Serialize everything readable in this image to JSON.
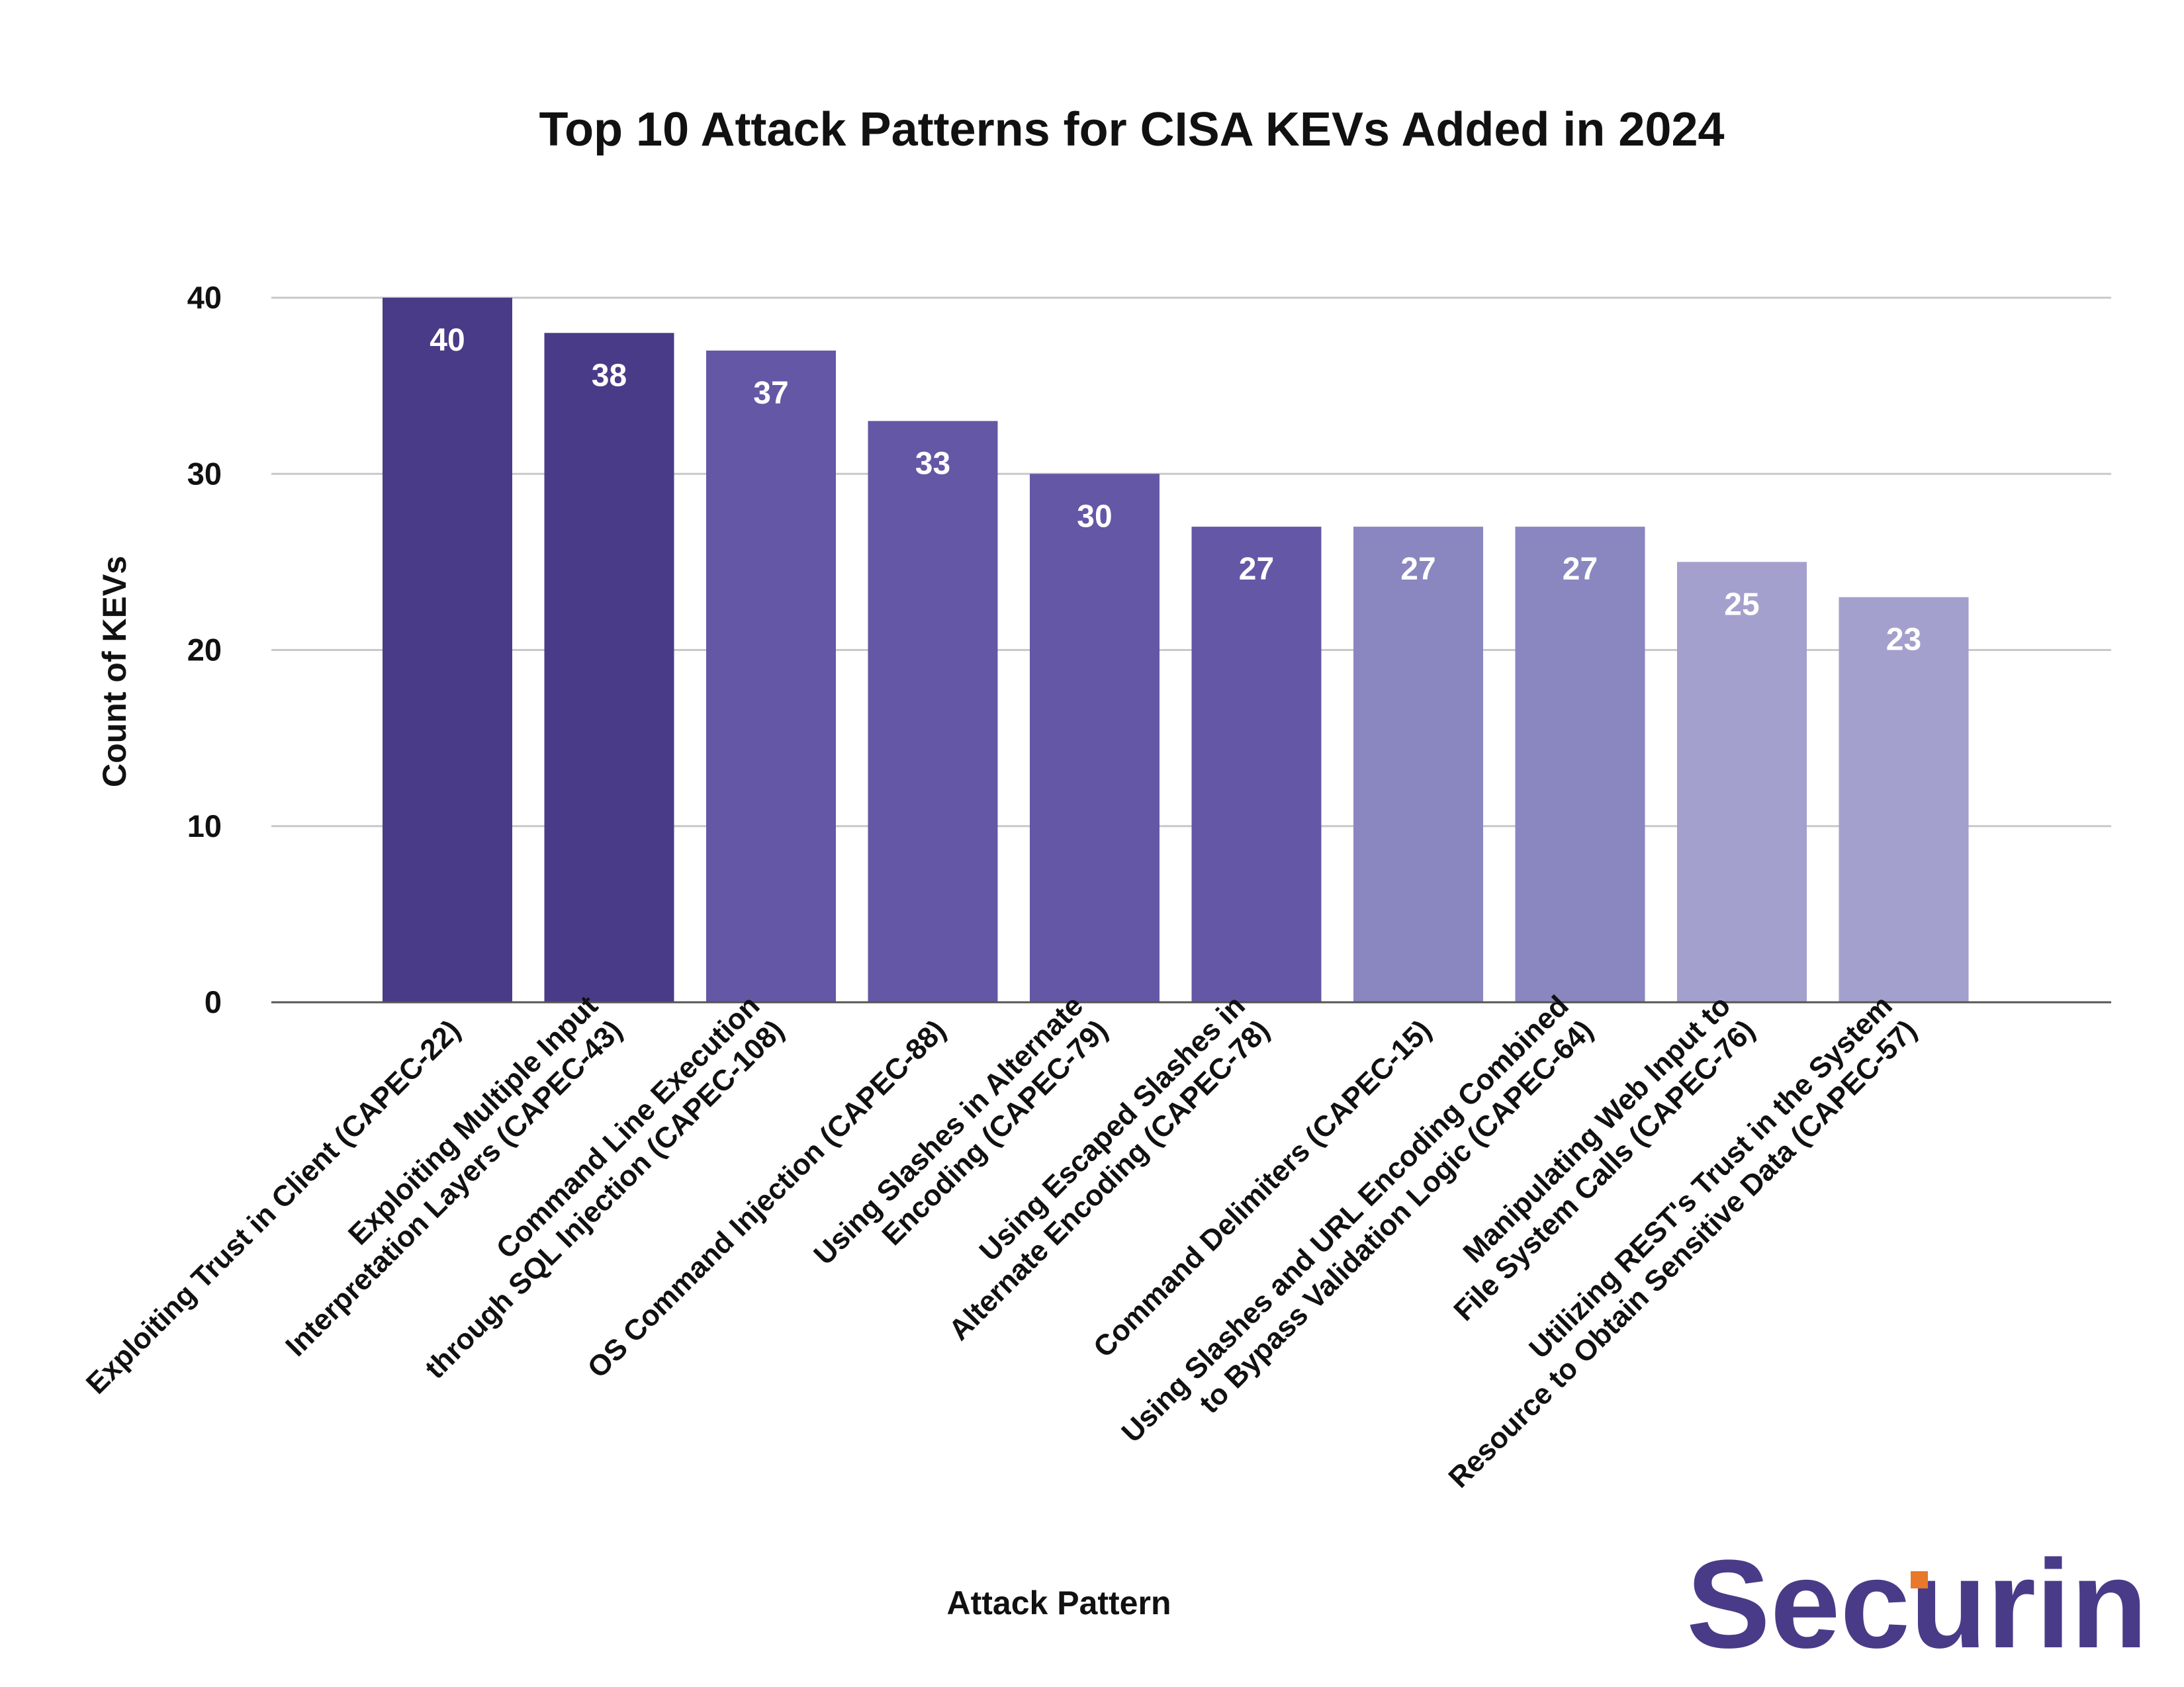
{
  "chart_data": {
    "type": "bar",
    "title": "Top 10 Attack Patterns for CISA KEVs Added in 2024",
    "xlabel": "Attack Pattern",
    "ylabel": "Count of KEVs",
    "ylim": [
      0,
      40
    ],
    "yticks": [
      0,
      10,
      20,
      30,
      40
    ],
    "grid": true,
    "categories": [
      [
        "Exploiting Trust in Client (CAPEC-22)"
      ],
      [
        "Exploiting Multiple Input",
        "Interpretation Layers (CAPEC-43)"
      ],
      [
        "Command Line Execution",
        "through SQL Injection (CAPEC-108)"
      ],
      [
        "OS Command Injection (CAPEC-88)"
      ],
      [
        "Using Slashes in Alternate",
        "Encoding (CAPEC-79)"
      ],
      [
        "Using Escaped Slashes in",
        "Alternate Encoding (CAPEC-78)"
      ],
      [
        "Command Delimiters (CAPEC-15)"
      ],
      [
        "Using Slashes and URL Encoding Combined",
        "to Bypass Validation Logic (CAPEC-64)"
      ],
      [
        "Manipulating Web Input to",
        "File System Calls (CAPEC-76)"
      ],
      [
        "Utilizing REST's Trust in the System",
        "Resource to Obtain Sensitive Data (CAPEC-57)"
      ]
    ],
    "values": [
      40,
      38,
      37,
      33,
      30,
      27,
      27,
      27,
      25,
      23
    ],
    "bar_colors": [
      "#4a3b88",
      "#4a3b88",
      "#6457a6",
      "#6457a6",
      "#6457a6",
      "#6457a6",
      "#8a86c0",
      "#8a86c0",
      "#a3a0cd",
      "#a3a0cd"
    ]
  },
  "logo": {
    "text": "Securin",
    "color": "#4a3b88",
    "accent": "#e8782a"
  }
}
